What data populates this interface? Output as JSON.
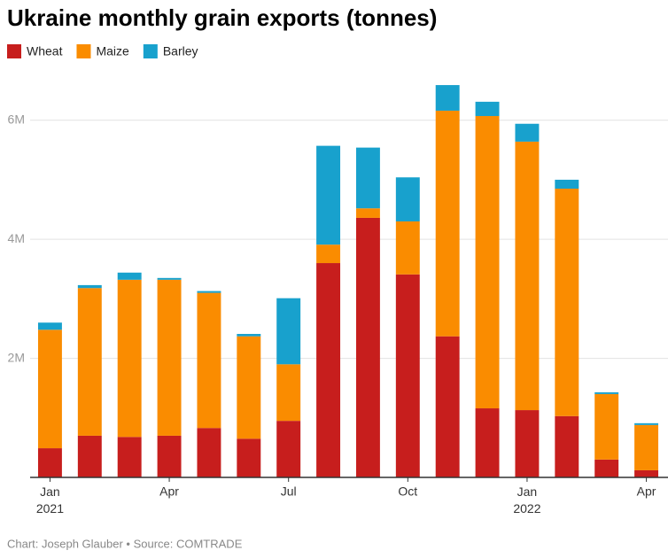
{
  "chart_data": {
    "type": "stacked_bar",
    "title": "Ukraine monthly grain exports (tonnes)",
    "source": "Chart: Joseph Glauber • Source: COMTRADE",
    "categories": [
      "Jan 2021",
      null,
      null,
      "Apr",
      null,
      null,
      "Jul",
      null,
      null,
      "Oct",
      null,
      null,
      "Jan 2022",
      null,
      null,
      "Apr"
    ],
    "series": [
      {
        "name": "Wheat",
        "color": "#c71e1d",
        "values": [
          490000,
          700000,
          680000,
          700000,
          830000,
          650000,
          950000,
          3600000,
          4360000,
          3410000,
          2370000,
          1160000,
          1130000,
          1030000,
          300000,
          120000
        ]
      },
      {
        "name": "Maize",
        "color": "#fa8c00",
        "values": [
          1990000,
          2480000,
          2640000,
          2620000,
          2270000,
          1720000,
          950000,
          310000,
          160000,
          890000,
          3790000,
          4910000,
          4510000,
          3820000,
          1100000,
          760000
        ]
      },
      {
        "name": "Barley",
        "color": "#18a1cd",
        "values": [
          120000,
          50000,
          120000,
          30000,
          30000,
          40000,
          1110000,
          1660000,
          1020000,
          740000,
          430000,
          240000,
          300000,
          150000,
          30000,
          30000
        ]
      }
    ],
    "ylim": [
      0,
      7000000
    ],
    "yticks": [
      {
        "value": 2000000,
        "label": "2M"
      },
      {
        "value": 4000000,
        "label": "4M"
      },
      {
        "value": 6000000,
        "label": "6M"
      }
    ],
    "grid": true,
    "legend": "top-left"
  }
}
